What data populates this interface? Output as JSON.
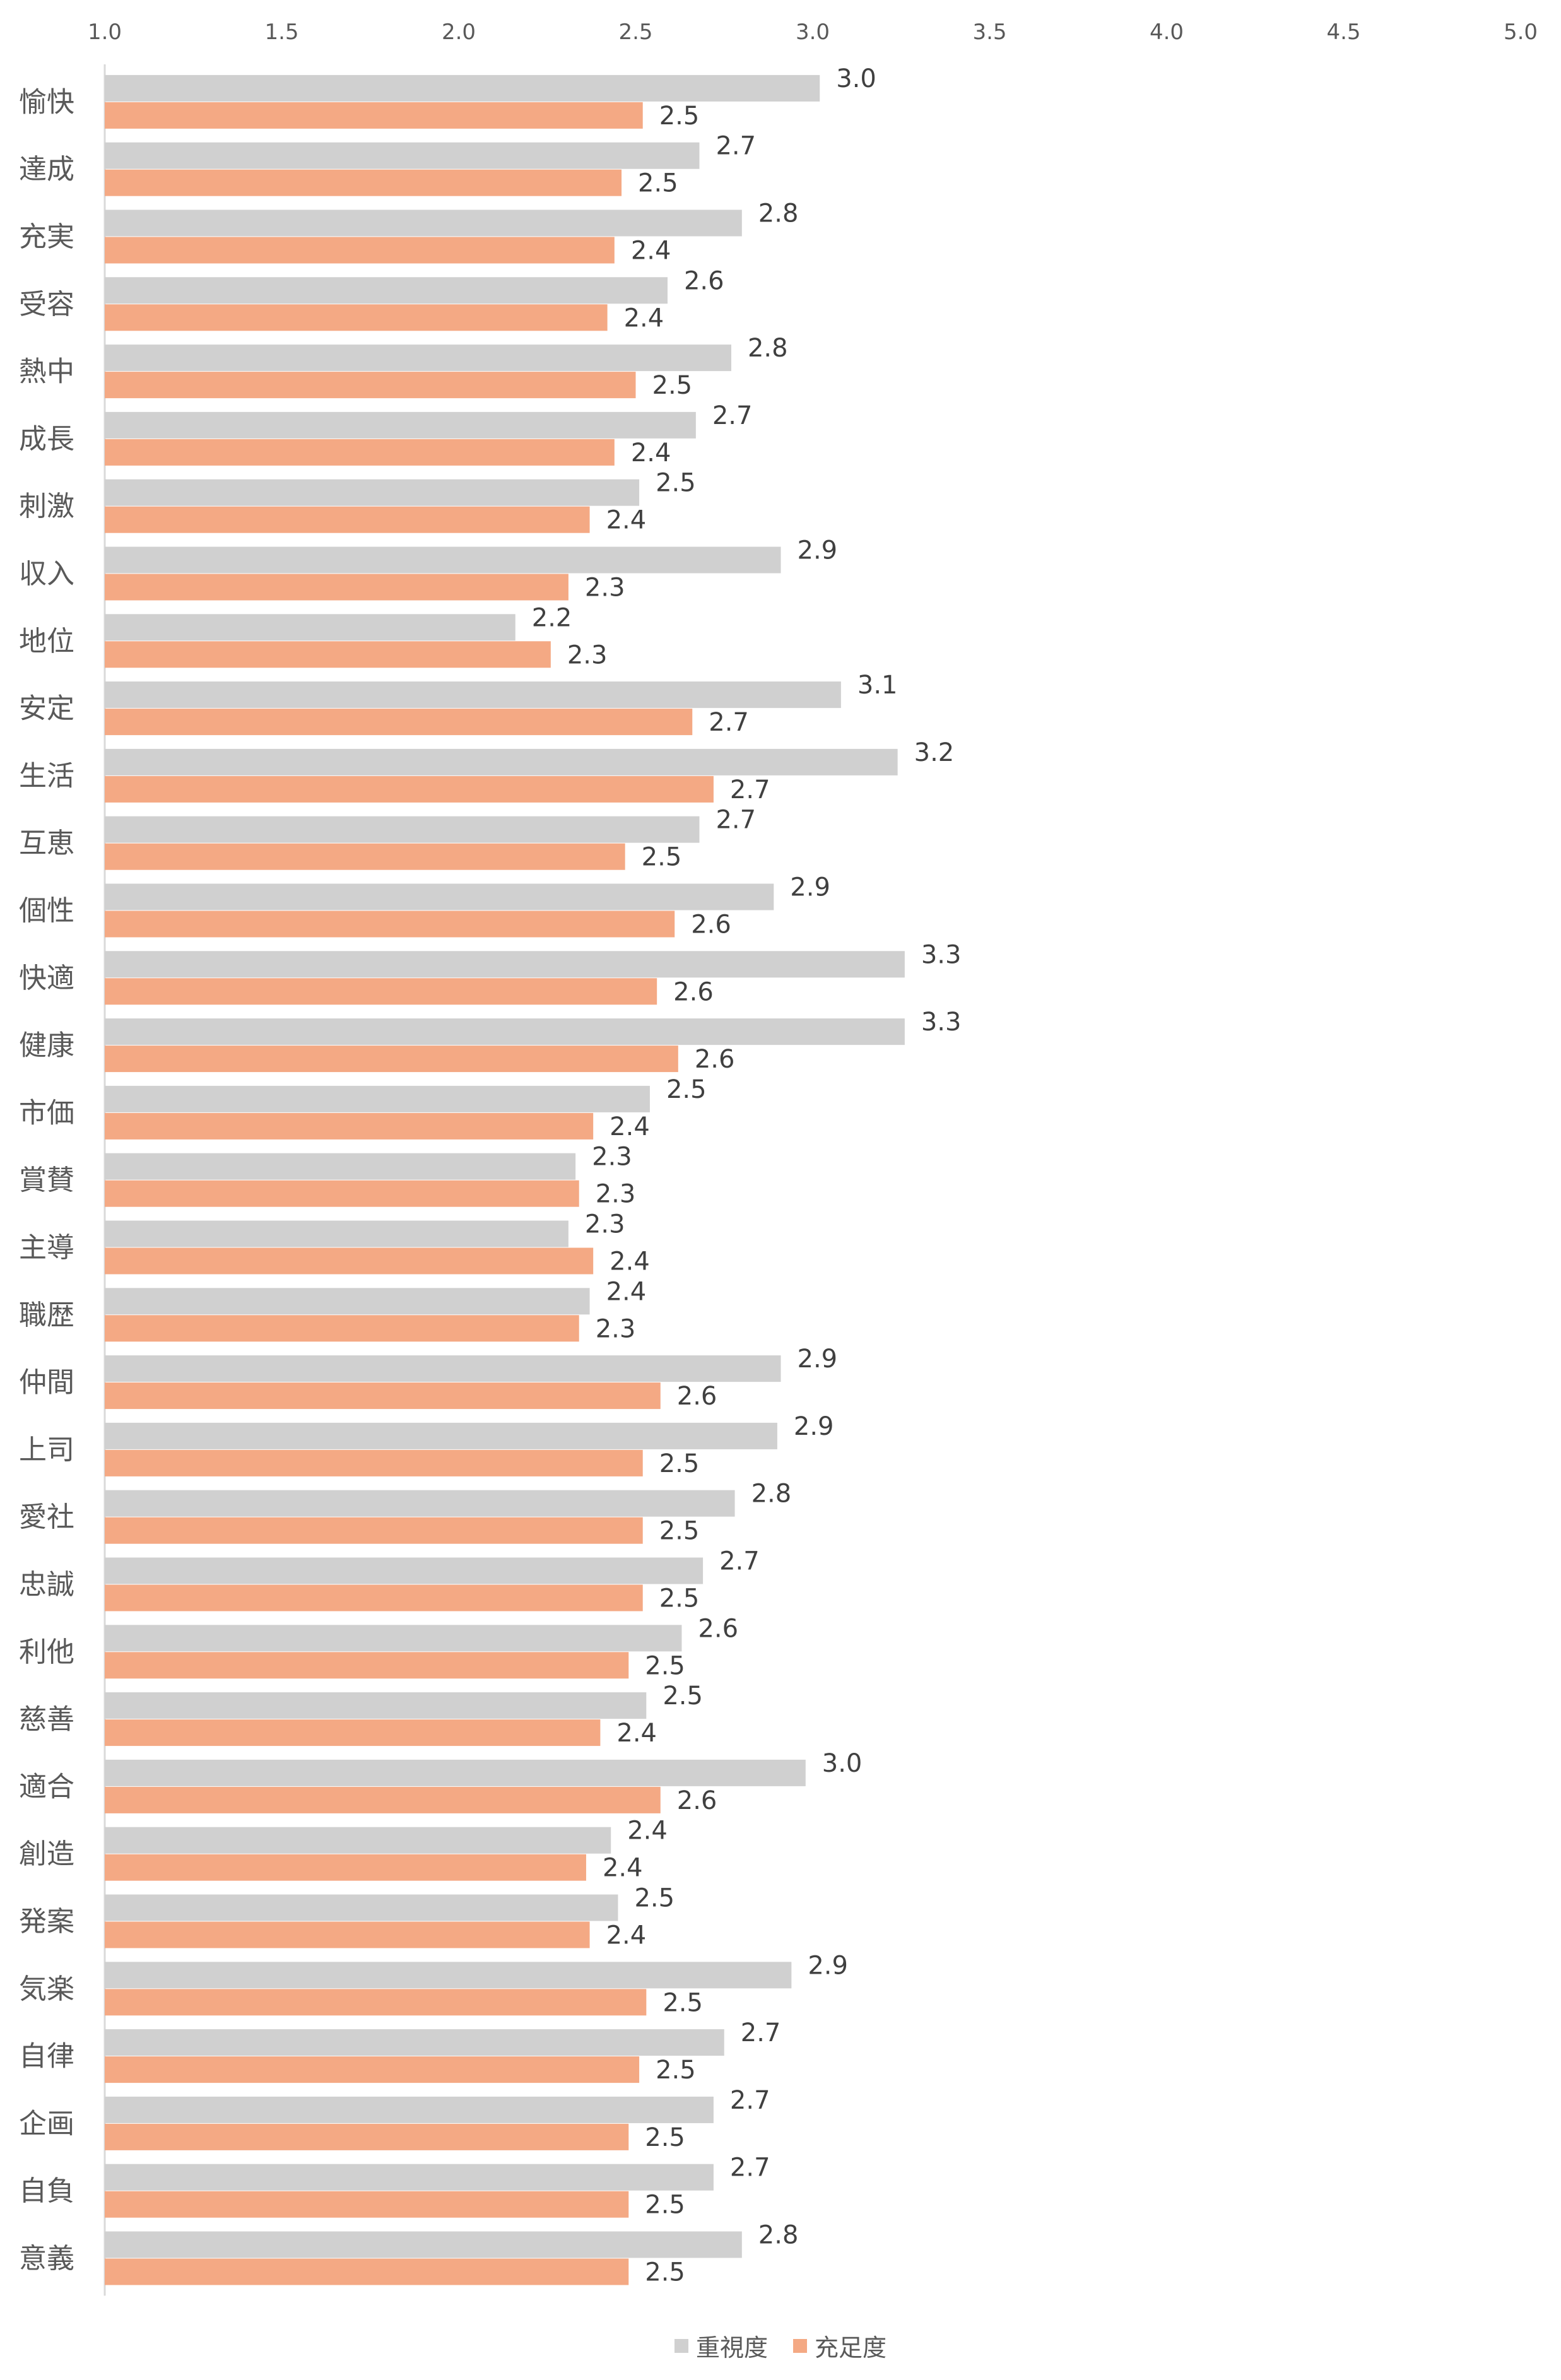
{
  "chart_data": {
    "type": "bar",
    "orientation": "horizontal",
    "xlim": [
      1.0,
      5.0
    ],
    "x_ticks": [
      "1.0",
      "1.5",
      "2.0",
      "2.5",
      "3.0",
      "3.5",
      "4.0",
      "4.5",
      "5.0"
    ],
    "categories": [
      "愉快",
      "達成",
      "充実",
      "受容",
      "熱中",
      "成長",
      "刺激",
      "収入",
      "地位",
      "安定",
      "生活",
      "互恵",
      "個性",
      "快適",
      "健康",
      "市価",
      "賞賛",
      "主導",
      "職歴",
      "仲間",
      "上司",
      "愛社",
      "忠誠",
      "利他",
      "慈善",
      "適合",
      "創造",
      "発案",
      "気楽",
      "自律",
      "企画",
      "自負",
      "意義"
    ],
    "series": [
      {
        "name": "重視度",
        "color": "#d0d0d0",
        "values": [
          3.02,
          2.68,
          2.8,
          2.59,
          2.77,
          2.67,
          2.51,
          2.91,
          2.16,
          3.08,
          3.24,
          2.68,
          2.89,
          3.26,
          3.26,
          2.54,
          2.33,
          2.31,
          2.37,
          2.91,
          2.9,
          2.78,
          2.69,
          2.63,
          2.53,
          2.98,
          2.43,
          2.45,
          2.94,
          2.75,
          2.72,
          2.72,
          2.8
        ],
        "labels": [
          "3.0",
          "2.7",
          "2.8",
          "2.6",
          "2.8",
          "2.7",
          "2.5",
          "2.9",
          "2.2",
          "3.1",
          "3.2",
          "2.7",
          "2.9",
          "3.3",
          "3.3",
          "2.5",
          "2.3",
          "2.3",
          "2.4",
          "2.9",
          "2.9",
          "2.8",
          "2.7",
          "2.6",
          "2.5",
          "3.0",
          "2.4",
          "2.5",
          "2.9",
          "2.7",
          "2.7",
          "2.7",
          "2.8"
        ]
      },
      {
        "name": "充足度",
        "color": "#f4a984",
        "values": [
          2.52,
          2.46,
          2.44,
          2.42,
          2.5,
          2.44,
          2.37,
          2.31,
          2.26,
          2.66,
          2.72,
          2.47,
          2.61,
          2.56,
          2.62,
          2.38,
          2.34,
          2.38,
          2.34,
          2.57,
          2.52,
          2.52,
          2.52,
          2.48,
          2.4,
          2.57,
          2.36,
          2.37,
          2.53,
          2.51,
          2.48,
          2.48,
          2.48
        ],
        "labels": [
          "2.5",
          "2.5",
          "2.4",
          "2.4",
          "2.5",
          "2.4",
          "2.4",
          "2.3",
          "2.3",
          "2.7",
          "2.7",
          "2.5",
          "2.6",
          "2.6",
          "2.6",
          "2.4",
          "2.3",
          "2.4",
          "2.3",
          "2.6",
          "2.5",
          "2.5",
          "2.5",
          "2.5",
          "2.4",
          "2.6",
          "2.4",
          "2.4",
          "2.5",
          "2.5",
          "2.5",
          "2.5",
          "2.5"
        ]
      }
    ],
    "grid": false,
    "legend_position": "bottom"
  }
}
